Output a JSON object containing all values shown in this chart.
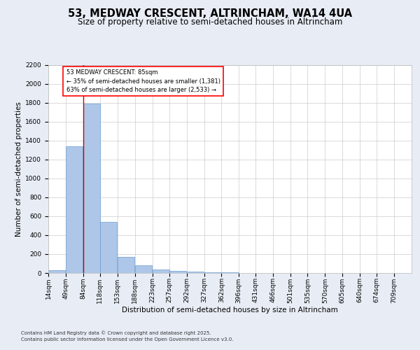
{
  "title_line1": "53, MEDWAY CRESCENT, ALTRINCHAM, WA14 4UA",
  "title_line2": "Size of property relative to semi-detached houses in Altrincham",
  "xlabel": "Distribution of semi-detached houses by size in Altrincham",
  "ylabel": "Number of semi-detached properties",
  "bins": [
    14,
    49,
    84,
    118,
    153,
    188,
    223,
    257,
    292,
    327,
    362,
    396,
    431,
    466,
    501,
    535,
    570,
    605,
    640,
    674,
    709
  ],
  "bar_heights": [
    30,
    1340,
    1790,
    540,
    170,
    85,
    35,
    25,
    15,
    8,
    5,
    2,
    1,
    1,
    0,
    0,
    0,
    0,
    0,
    0
  ],
  "bar_color": "#aec6e8",
  "bar_edge_color": "#6a9fd0",
  "annotation_box_text": "53 MEDWAY CRESCENT: 85sqm\n← 35% of semi-detached houses are smaller (1,381)\n63% of semi-detached houses are larger (2,533) →",
  "vline_x": 84,
  "vline_color": "#cc0000",
  "ylim": [
    0,
    2200
  ],
  "yticks": [
    0,
    200,
    400,
    600,
    800,
    1000,
    1200,
    1400,
    1600,
    1800,
    2000,
    2200
  ],
  "footer_line1": "Contains HM Land Registry data © Crown copyright and database right 2025.",
  "footer_line2": "Contains public sector information licensed under the Open Government Licence v3.0.",
  "bg_color": "#e8edf5",
  "plot_bg_color": "#ffffff",
  "title_fontsize": 10.5,
  "subtitle_fontsize": 8.5,
  "axis_label_fontsize": 7.5,
  "tick_fontsize": 6.5,
  "footer_fontsize": 5.0
}
